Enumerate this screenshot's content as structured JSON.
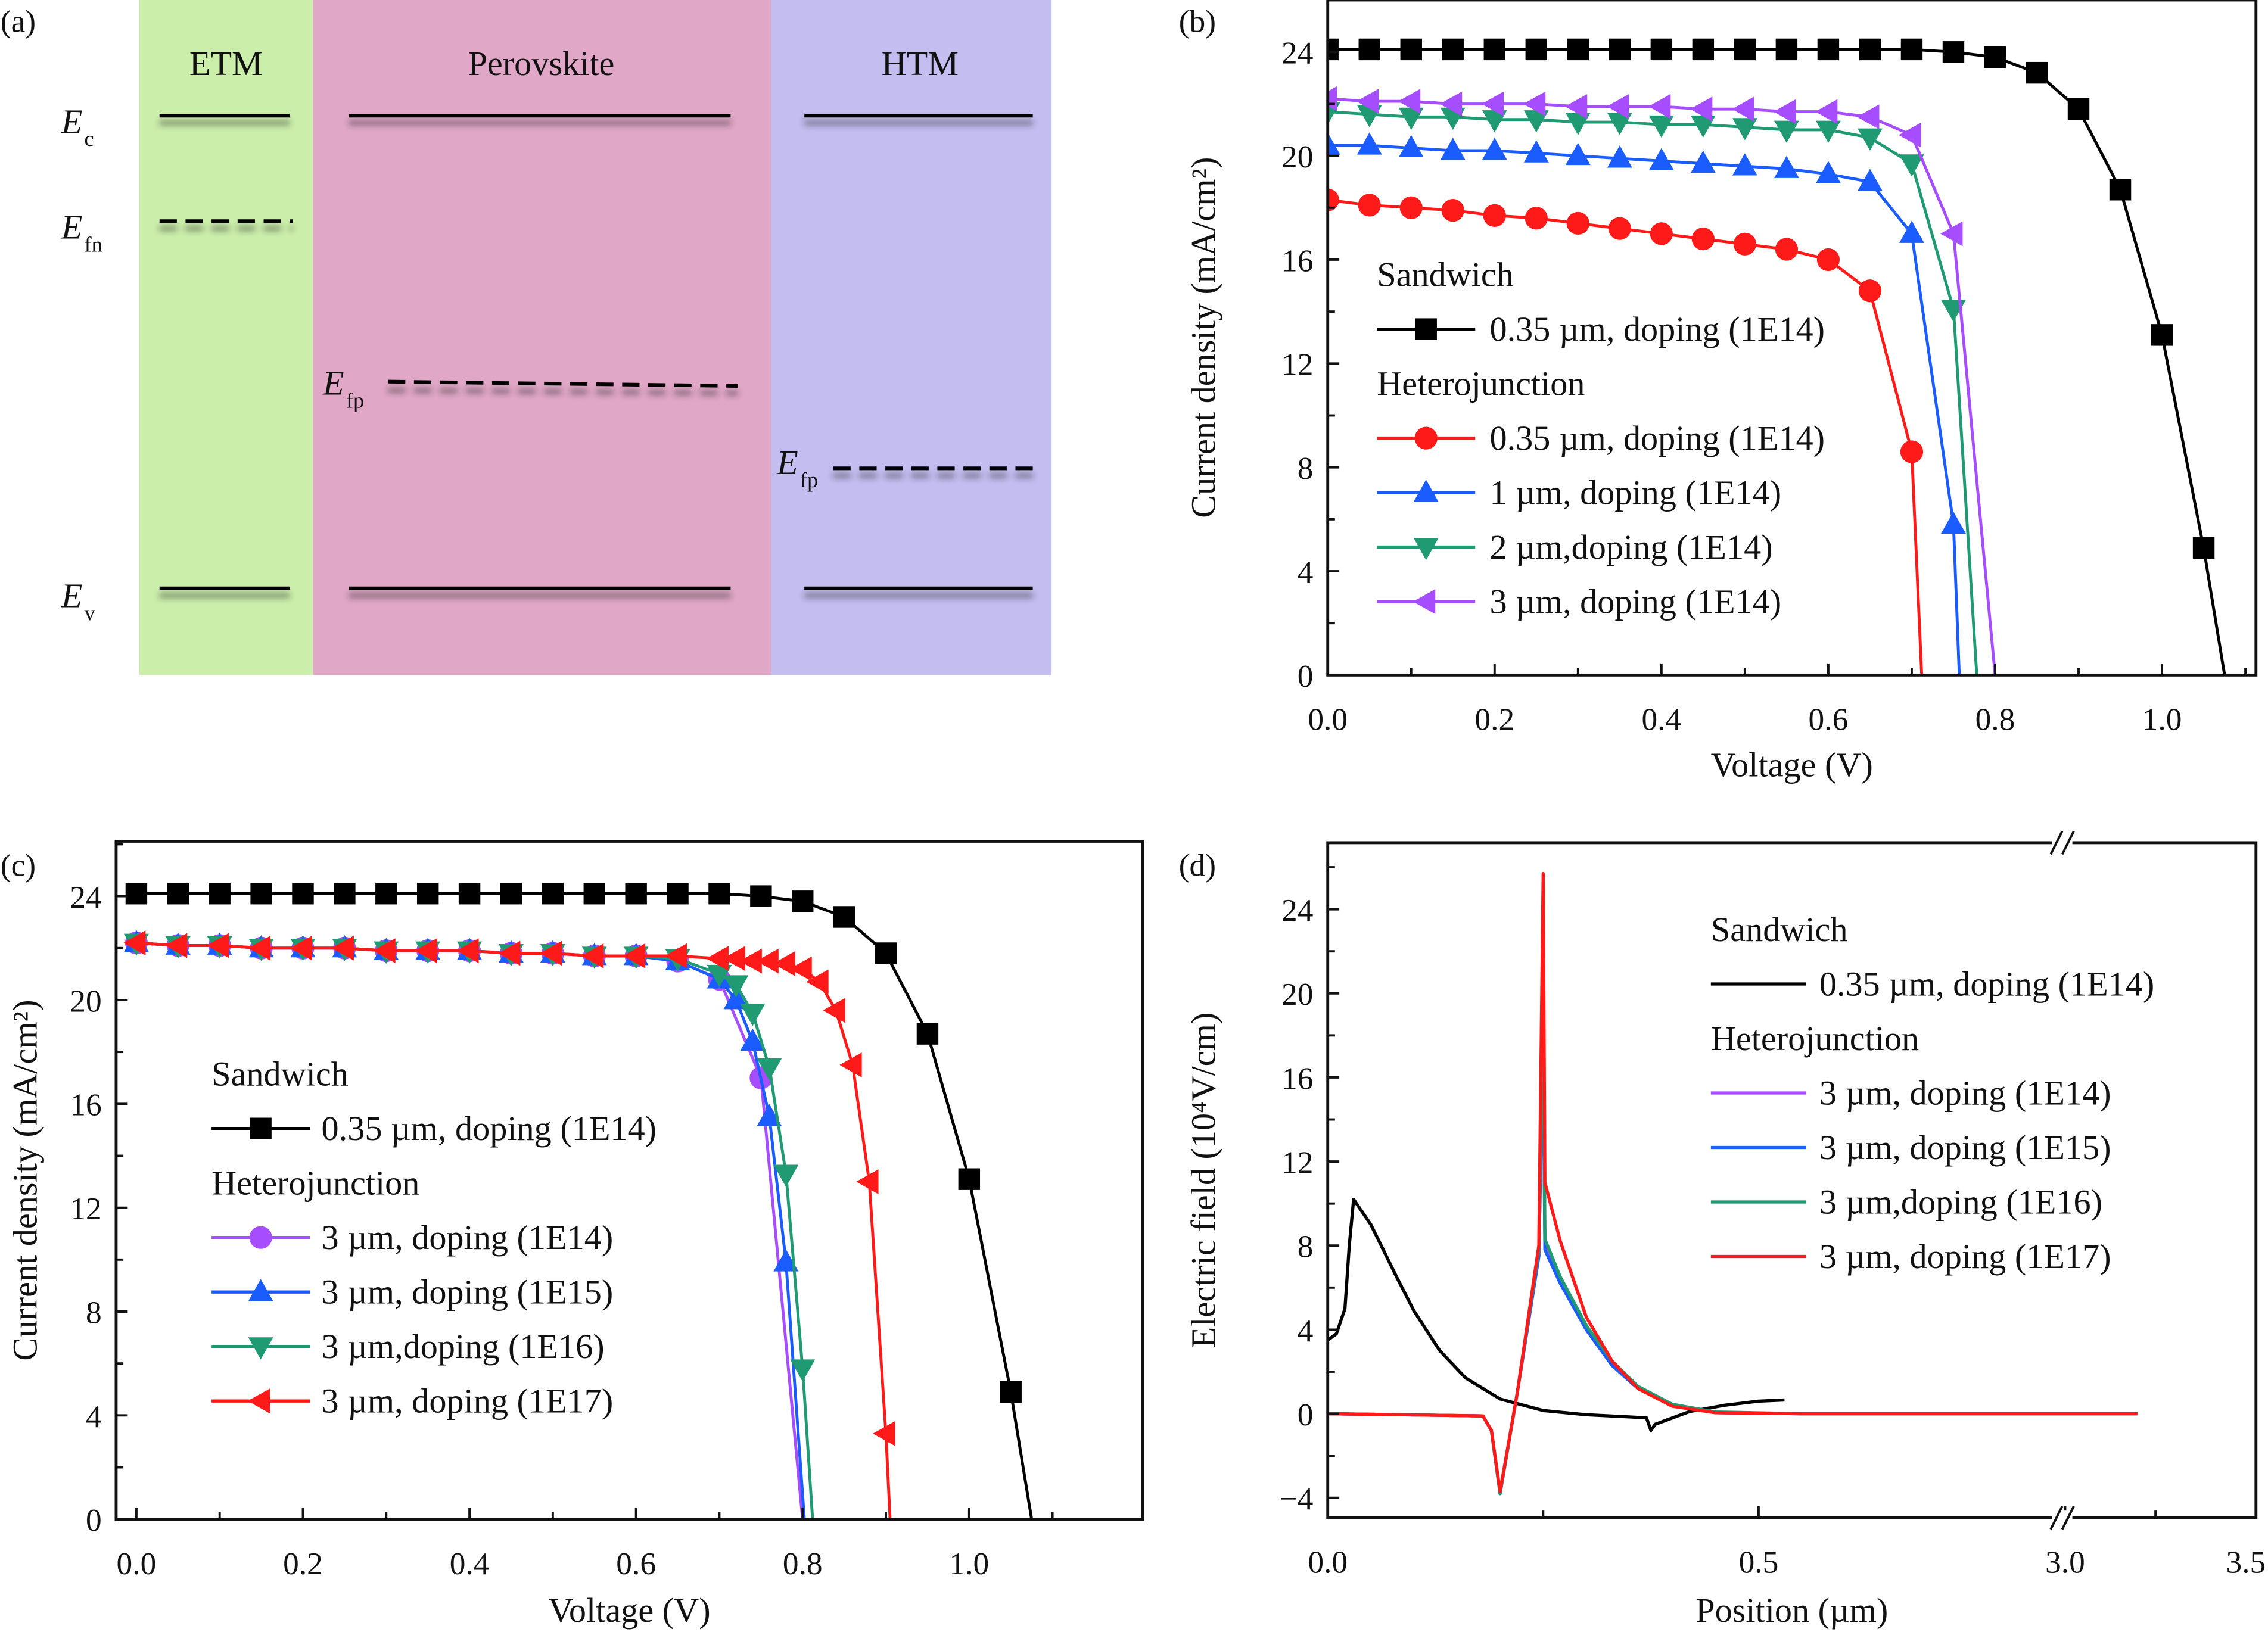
{
  "panels": {
    "a": {
      "label": "(a)",
      "layers": [
        {
          "name": "ETM",
          "color": "#cbeeab"
        },
        {
          "name": "Perovskite",
          "color": "#e0a7c6"
        },
        {
          "name": "HTM",
          "color": "#c3bdf0"
        }
      ],
      "levels": {
        "Ec": {
          "main": "E",
          "sub": "c"
        },
        "Efn": {
          "main": "E",
          "sub": "fn"
        },
        "Efp": {
          "main": "E",
          "sub": "fp"
        },
        "Ev": {
          "main": "E",
          "sub": "v"
        }
      }
    },
    "b": {
      "label": "(b)"
    },
    "c": {
      "label": "(c)"
    },
    "d": {
      "label": "(d)"
    }
  },
  "chart_data": [
    {
      "id": "b",
      "type": "line",
      "title": "",
      "xlabel": "Voltage (V)",
      "ylabel": "Current density (mA/cm²)",
      "xlim": [
        0,
        1.1
      ],
      "ylim": [
        0,
        26
      ],
      "xticks": [
        "0.0",
        "0.2",
        "0.4",
        "0.6",
        "0.8",
        "1.0"
      ],
      "yticks": [
        "0",
        "4",
        "8",
        "12",
        "16",
        "20",
        "24"
      ],
      "legend_position": "center-left",
      "legend_groups": [
        {
          "title": "Sandwich",
          "series": [
            0
          ]
        },
        {
          "title": "Heterojunction",
          "series": [
            1,
            2,
            3,
            4
          ]
        }
      ],
      "series": [
        {
          "name": "0.35 µm, doping (1E14)",
          "color": "#000000",
          "marker": "square",
          "x": [
            0,
            0.05,
            0.1,
            0.15,
            0.2,
            0.25,
            0.3,
            0.35,
            0.4,
            0.45,
            0.5,
            0.55,
            0.6,
            0.65,
            0.7,
            0.75,
            0.8,
            0.85,
            0.9,
            0.95,
            1.0,
            1.05,
            1.075
          ],
          "y": [
            24.1,
            24.1,
            24.1,
            24.1,
            24.1,
            24.1,
            24.1,
            24.1,
            24.1,
            24.1,
            24.1,
            24.1,
            24.1,
            24.1,
            24.1,
            24.0,
            23.8,
            23.2,
            21.8,
            18.7,
            13.1,
            4.9,
            0
          ],
          "markers_upto": 22
        },
        {
          "name": "0.35 µm, doping (1E14)",
          "color": "#ff1a1a",
          "marker": "circle",
          "x": [
            0,
            0.05,
            0.1,
            0.15,
            0.2,
            0.25,
            0.3,
            0.35,
            0.4,
            0.45,
            0.5,
            0.55,
            0.6,
            0.65,
            0.7,
            0.712
          ],
          "y": [
            18.3,
            18.1,
            18.0,
            17.9,
            17.7,
            17.6,
            17.4,
            17.2,
            17.0,
            16.8,
            16.6,
            16.4,
            16.0,
            14.8,
            8.6,
            0
          ],
          "markers_upto": 15
        },
        {
          "name": "1 µm, doping (1E14)",
          "color": "#1a5cff",
          "marker": "triangle-up",
          "x": [
            0,
            0.05,
            0.1,
            0.15,
            0.2,
            0.25,
            0.3,
            0.35,
            0.4,
            0.45,
            0.5,
            0.55,
            0.6,
            0.65,
            0.7,
            0.75,
            0.757
          ],
          "y": [
            20.4,
            20.4,
            20.3,
            20.2,
            20.2,
            20.1,
            20.0,
            19.9,
            19.8,
            19.7,
            19.6,
            19.5,
            19.3,
            19.0,
            17.0,
            5.8,
            0
          ],
          "markers_upto": 16
        },
        {
          "name": "2 µm,doping (1E14)",
          "color": "#1f9a72",
          "marker": "triangle-down",
          "x": [
            0,
            0.05,
            0.1,
            0.15,
            0.2,
            0.25,
            0.3,
            0.35,
            0.4,
            0.45,
            0.5,
            0.55,
            0.6,
            0.65,
            0.7,
            0.75,
            0.778
          ],
          "y": [
            21.7,
            21.6,
            21.5,
            21.5,
            21.4,
            21.4,
            21.3,
            21.3,
            21.2,
            21.2,
            21.1,
            21.0,
            21.0,
            20.7,
            19.7,
            14.1,
            0
          ],
          "markers_upto": 16
        },
        {
          "name": "3 µm, doping (1E14)",
          "color": "#a64dff",
          "marker": "triangle-left",
          "x": [
            0,
            0.05,
            0.1,
            0.15,
            0.2,
            0.25,
            0.3,
            0.35,
            0.4,
            0.45,
            0.5,
            0.55,
            0.6,
            0.65,
            0.7,
            0.75,
            0.8
          ],
          "y": [
            22.2,
            22.1,
            22.1,
            22.0,
            22.0,
            22.0,
            21.9,
            21.9,
            21.9,
            21.8,
            21.8,
            21.7,
            21.7,
            21.5,
            20.8,
            17.0,
            0
          ],
          "markers_upto": 16
        }
      ]
    },
    {
      "id": "c",
      "type": "line",
      "title": "",
      "xlabel": "Voltage (V)",
      "ylabel": "Current density (mA/cm²)",
      "xlim": [
        0,
        1.1
      ],
      "ylim": [
        0,
        26
      ],
      "xticks": [
        "0.0",
        "0.2",
        "0.4",
        "0.6",
        "0.8",
        "1.0"
      ],
      "yticks": [
        "0",
        "4",
        "8",
        "12",
        "16",
        "20",
        "24"
      ],
      "legend_position": "center-left",
      "legend_groups": [
        {
          "title": "Sandwich",
          "series": [
            0
          ]
        },
        {
          "title": "Heterojunction",
          "series": [
            1,
            2,
            3,
            4
          ]
        }
      ],
      "series": [
        {
          "name": "0.35 µm, doping (1E14)",
          "color": "#000000",
          "marker": "square",
          "x": [
            0,
            0.05,
            0.1,
            0.15,
            0.2,
            0.25,
            0.3,
            0.35,
            0.4,
            0.45,
            0.5,
            0.55,
            0.6,
            0.65,
            0.7,
            0.75,
            0.8,
            0.85,
            0.9,
            0.95,
            1.0,
            1.05,
            1.075
          ],
          "y": [
            24.1,
            24.1,
            24.1,
            24.1,
            24.1,
            24.1,
            24.1,
            24.1,
            24.1,
            24.1,
            24.1,
            24.1,
            24.1,
            24.1,
            24.1,
            24.0,
            23.8,
            23.2,
            21.8,
            18.7,
            13.1,
            4.9,
            0
          ],
          "markers_upto": 22
        },
        {
          "name": "3 µm, doping (1E14)",
          "color": "#a64dff",
          "marker": "circle",
          "x": [
            0,
            0.05,
            0.1,
            0.15,
            0.2,
            0.25,
            0.3,
            0.35,
            0.4,
            0.45,
            0.5,
            0.55,
            0.6,
            0.65,
            0.7,
            0.75,
            0.8
          ],
          "y": [
            22.2,
            22.1,
            22.1,
            22.0,
            22.0,
            22.0,
            21.9,
            21.9,
            21.9,
            21.8,
            21.8,
            21.7,
            21.7,
            21.5,
            20.8,
            17.0,
            0
          ],
          "markers_upto": 16
        },
        {
          "name": "3 µm, doping (1E15)",
          "color": "#1a5cff",
          "marker": "triangle-up",
          "x": [
            0,
            0.05,
            0.1,
            0.15,
            0.2,
            0.25,
            0.3,
            0.35,
            0.4,
            0.45,
            0.5,
            0.55,
            0.6,
            0.65,
            0.7,
            0.72,
            0.74,
            0.76,
            0.78,
            0.802
          ],
          "y": [
            22.2,
            22.1,
            22.1,
            22.0,
            22.0,
            22.0,
            21.9,
            21.9,
            21.9,
            21.8,
            21.8,
            21.7,
            21.7,
            21.5,
            20.8,
            20.0,
            18.4,
            15.5,
            9.9,
            0
          ],
          "markers_upto": 19
        },
        {
          "name": "3 µm,doping (1E16)",
          "color": "#1f9a72",
          "marker": "triangle-down",
          "x": [
            0,
            0.05,
            0.1,
            0.15,
            0.2,
            0.25,
            0.3,
            0.35,
            0.4,
            0.45,
            0.5,
            0.55,
            0.6,
            0.65,
            0.7,
            0.72,
            0.74,
            0.76,
            0.78,
            0.8,
            0.812
          ],
          "y": [
            22.2,
            22.1,
            22.1,
            22.0,
            22.0,
            22.0,
            21.9,
            21.9,
            21.9,
            21.8,
            21.8,
            21.7,
            21.7,
            21.6,
            21.0,
            20.6,
            19.5,
            17.4,
            13.3,
            5.8,
            0
          ],
          "markers_upto": 20
        },
        {
          "name": "3 µm, doping (1E17)",
          "color": "#ff1a1a",
          "marker": "triangle-left",
          "x": [
            0,
            0.05,
            0.1,
            0.15,
            0.2,
            0.25,
            0.3,
            0.35,
            0.4,
            0.45,
            0.5,
            0.55,
            0.6,
            0.65,
            0.7,
            0.72,
            0.74,
            0.76,
            0.78,
            0.8,
            0.82,
            0.84,
            0.86,
            0.88,
            0.9,
            0.905
          ],
          "y": [
            22.2,
            22.1,
            22.1,
            22.0,
            22.0,
            22.0,
            21.9,
            21.9,
            21.9,
            21.8,
            21.8,
            21.7,
            21.7,
            21.7,
            21.6,
            21.6,
            21.5,
            21.5,
            21.4,
            21.2,
            20.7,
            19.6,
            17.5,
            13.0,
            3.3,
            0
          ],
          "markers_upto": 25
        }
      ]
    },
    {
      "id": "d",
      "type": "line",
      "title": "",
      "xlabel": "Position (µm)",
      "ylabel": "Electric field (10⁴V/cm)",
      "x_break": {
        "from": 0.65,
        "to": 3.0
      },
      "xlim": [
        0,
        3.5
      ],
      "ylim": [
        -5,
        27
      ],
      "xticks": [
        "0.0",
        "0.5",
        "3.0",
        "3.5"
      ],
      "yticks": [
        "-4",
        "0",
        "4",
        "8",
        "12",
        "16",
        "20",
        "24"
      ],
      "legend_position": "top-right",
      "legend_groups": [
        {
          "title": "Sandwich",
          "series": [
            0
          ]
        },
        {
          "title": "Heterojunction",
          "series": [
            1,
            2,
            3,
            4
          ]
        }
      ],
      "series": [
        {
          "name": "0.35 µm, doping (1E14)",
          "color": "#000000",
          "x": [
            0,
            0.01,
            0.02,
            0.025,
            0.03,
            0.05,
            0.08,
            0.1,
            0.13,
            0.16,
            0.2,
            0.25,
            0.3,
            0.35,
            0.37,
            0.375,
            0.38,
            0.42,
            0.46,
            0.5,
            0.53
          ],
          "y": [
            3.5,
            3.8,
            5.0,
            8.0,
            10.2,
            9.0,
            6.5,
            4.9,
            3.0,
            1.7,
            0.7,
            0.15,
            -0.05,
            -0.15,
            -0.2,
            -0.8,
            -0.5,
            0.1,
            0.4,
            0.6,
            0.65
          ]
        },
        {
          "name": "3 µm, doping (1E14)",
          "color": "#a64dff",
          "x": [
            0,
            0.18,
            0.19,
            0.2,
            0.22,
            0.245,
            0.25,
            0.252,
            0.27,
            0.3,
            0.33,
            0.36,
            0.4,
            0.45,
            0.55,
            0.6,
            3.0,
            3.2
          ],
          "y": [
            0,
            -0.1,
            -0.8,
            -3.8,
            1.0,
            7.5,
            19.0,
            8.0,
            6.3,
            4.0,
            2.3,
            1.2,
            0.4,
            0.05,
            0,
            0,
            0,
            0
          ]
        },
        {
          "name": "3 µm, doping (1E15)",
          "color": "#1a5cff",
          "x": [
            0,
            0.18,
            0.19,
            0.2,
            0.22,
            0.245,
            0.25,
            0.252,
            0.27,
            0.3,
            0.33,
            0.36,
            0.4,
            0.45,
            0.55,
            0.6,
            3.0,
            3.2
          ],
          "y": [
            0,
            -0.1,
            -0.8,
            -3.8,
            1.0,
            7.5,
            17.5,
            7.8,
            6.2,
            4.0,
            2.3,
            1.2,
            0.4,
            0.05,
            0,
            0,
            0,
            0
          ]
        },
        {
          "name": "3 µm,doping (1E16)",
          "color": "#1f9a72",
          "x": [
            0,
            0.18,
            0.19,
            0.2,
            0.22,
            0.245,
            0.25,
            0.252,
            0.27,
            0.3,
            0.33,
            0.36,
            0.4,
            0.45,
            0.55,
            0.6,
            3.0,
            3.2
          ],
          "y": [
            0,
            -0.1,
            -0.8,
            -3.8,
            1.0,
            7.8,
            20.5,
            8.3,
            6.5,
            4.2,
            2.5,
            1.3,
            0.45,
            0.08,
            0,
            0,
            0,
            0
          ]
        },
        {
          "name": "3 µm, doping (1E17)",
          "color": "#ff1a1a",
          "x": [
            0,
            0.18,
            0.19,
            0.2,
            0.22,
            0.245,
            0.25,
            0.252,
            0.27,
            0.3,
            0.33,
            0.36,
            0.4,
            0.45,
            0.55,
            0.6,
            3.0,
            3.2
          ],
          "y": [
            0,
            -0.1,
            -0.8,
            -3.7,
            1.0,
            8.0,
            25.7,
            11.0,
            8.2,
            4.6,
            2.5,
            1.2,
            0.35,
            0.05,
            0,
            0,
            0,
            0
          ]
        }
      ]
    }
  ]
}
